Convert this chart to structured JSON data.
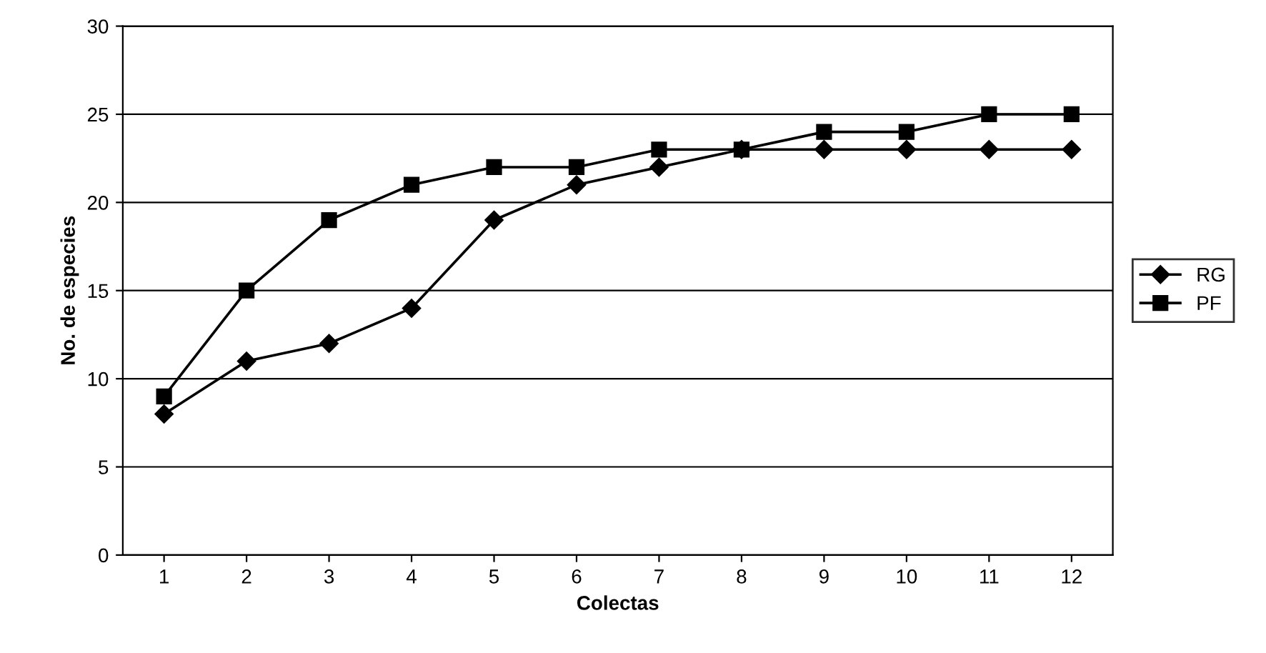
{
  "chart_data": {
    "type": "line",
    "xlabel": "Colectas",
    "ylabel": "No. de especies",
    "categories": [
      "1",
      "2",
      "3",
      "4",
      "5",
      "6",
      "7",
      "8",
      "9",
      "10",
      "11",
      "12"
    ],
    "series": [
      {
        "name": "RG",
        "color": "#000000",
        "marker": "diamond",
        "values": [
          8,
          11,
          12,
          14,
          19,
          21,
          22,
          23,
          23,
          23,
          23,
          23
        ]
      },
      {
        "name": "PF",
        "color": "#000000",
        "marker": "square",
        "values": [
          9,
          15,
          19,
          21,
          22,
          22,
          23,
          23,
          24,
          24,
          25,
          25
        ]
      }
    ],
    "ylim": [
      0,
      30
    ],
    "yticks": [
      0,
      5,
      10,
      15,
      20,
      25,
      30
    ],
    "grid": "y",
    "legend": "right",
    "line_style": "solid"
  }
}
